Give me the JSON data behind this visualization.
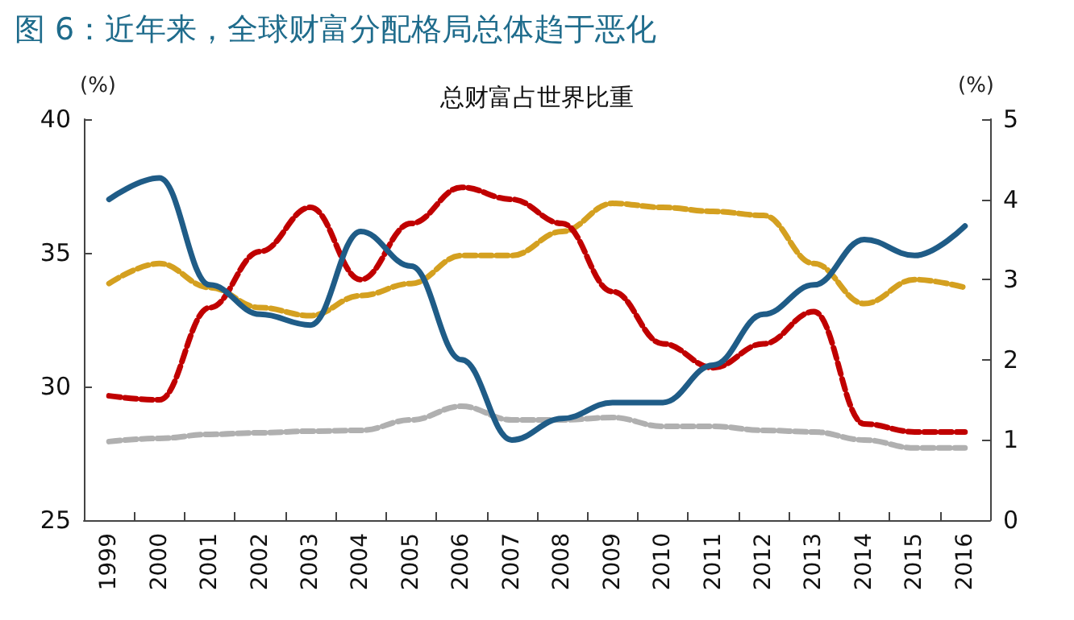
{
  "chart_data": {
    "type": "line",
    "title": "图 6：近年来，全球财富分配格局总体趋于恶化",
    "subtitle": "总财富占世界比重",
    "ylabel": "(%)",
    "y2label": "(%)",
    "categories": [
      "1999",
      "2000",
      "2001",
      "2002",
      "2003",
      "2004",
      "2005",
      "2006",
      "2007",
      "2008",
      "2009",
      "2010",
      "2011",
      "2012",
      "2013",
      "2014",
      "2015",
      "2016"
    ],
    "ylim": [
      25,
      40
    ],
    "yticks": [
      25,
      30,
      35,
      40
    ],
    "y2lim": [
      0,
      5
    ],
    "y2ticks": [
      0,
      1,
      2,
      3,
      4,
      5
    ],
    "grid": false,
    "marker": "none",
    "series": [
      {
        "color": "#1f5c87",
        "line_style": "solid",
        "values": [
          37.0,
          37.8,
          33.8,
          32.7,
          32.3,
          35.8,
          34.5,
          31.0,
          28.0,
          28.8,
          29.4,
          29.4,
          30.8,
          32.7,
          33.8,
          35.5,
          34.9,
          36.0
        ]
      },
      {
        "color": "#c00000",
        "line_style": "dashed",
        "axis": "y2",
        "values": [
          1.55,
          1.5,
          2.65,
          3.35,
          3.9,
          3.0,
          3.7,
          4.15,
          4.0,
          3.7,
          2.85,
          2.2,
          1.9,
          2.2,
          2.6,
          1.2,
          1.1,
          1.1
        ]
      },
      {
        "color": "#d4a020",
        "line_style": "dashed",
        "axis": "y2",
        "values": [
          2.95,
          3.2,
          2.9,
          2.65,
          2.55,
          2.8,
          2.95,
          3.3,
          3.3,
          3.6,
          3.95,
          3.9,
          3.85,
          3.8,
          3.2,
          2.7,
          3.0,
          2.9
        ]
      },
      {
        "color": "#b0b0b0",
        "line_style": "dashed",
        "axis": "y2",
        "values": [
          0.98,
          1.02,
          1.07,
          1.09,
          1.11,
          1.12,
          1.25,
          1.42,
          1.25,
          1.25,
          1.28,
          1.17,
          1.17,
          1.12,
          1.1,
          1.0,
          0.9,
          0.9
        ]
      }
    ]
  }
}
